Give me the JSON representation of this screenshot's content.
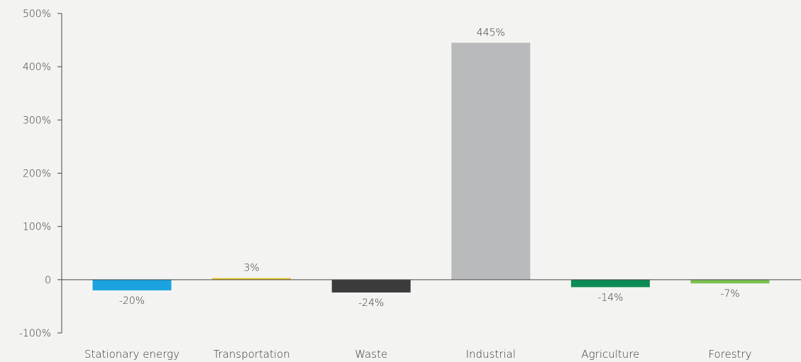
{
  "chart_data": {
    "type": "bar",
    "categories": [
      "Stationary energy",
      "Transportation",
      "Waste",
      "Industrial",
      "Agriculture",
      "Forestry"
    ],
    "values": [
      -20,
      3,
      -24,
      445,
      -14,
      -7
    ],
    "value_labels": [
      "-20%",
      "3%",
      "-24%",
      "445%",
      "-14%",
      "-7%"
    ],
    "colors": [
      "#1aa3e0",
      "#e6c22a",
      "#3b3b3b",
      "#b9babb",
      "#0a8c54",
      "#7cc152"
    ],
    "ylim": [
      -100,
      500
    ],
    "y_ticks": [
      -100,
      0,
      100,
      200,
      300,
      400,
      500
    ],
    "y_tick_labels": [
      "-100%",
      "0",
      "100%",
      "200%",
      "300%",
      "400%",
      "500%"
    ],
    "grid": false,
    "title": "",
    "xlabel": "",
    "ylabel": ""
  }
}
